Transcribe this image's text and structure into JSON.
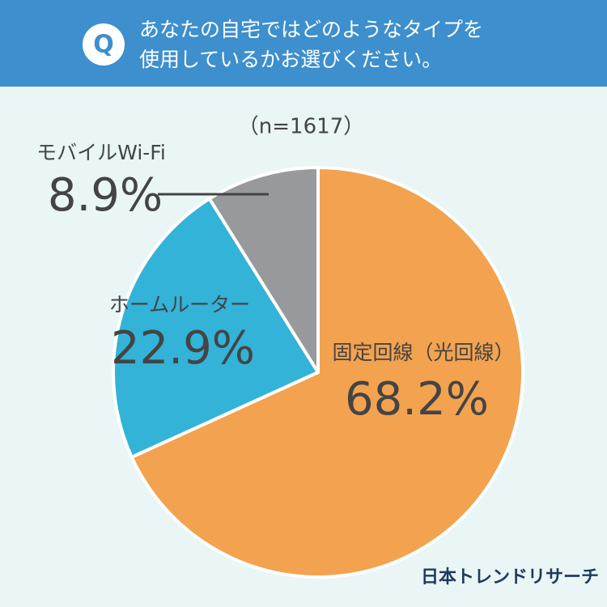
{
  "question_badge": "Q",
  "chart_data": {
    "type": "pie",
    "title_lines": [
      "あなたの自宅ではどのようなタイプを",
      "使用しているかお選びください。"
    ],
    "subtitle": "（n=1617）",
    "categories": [
      "固定回線（光回線）",
      "ホームルーター",
      "モバイルWi-Fi"
    ],
    "values": [
      68.2,
      22.9,
      8.9
    ],
    "value_labels": [
      "68.2%",
      "22.9%",
      "8.9%"
    ],
    "colors": [
      "#f3a24f",
      "#33b3d8",
      "#98999d"
    ]
  },
  "logo": "日本トレンドリサーチ"
}
